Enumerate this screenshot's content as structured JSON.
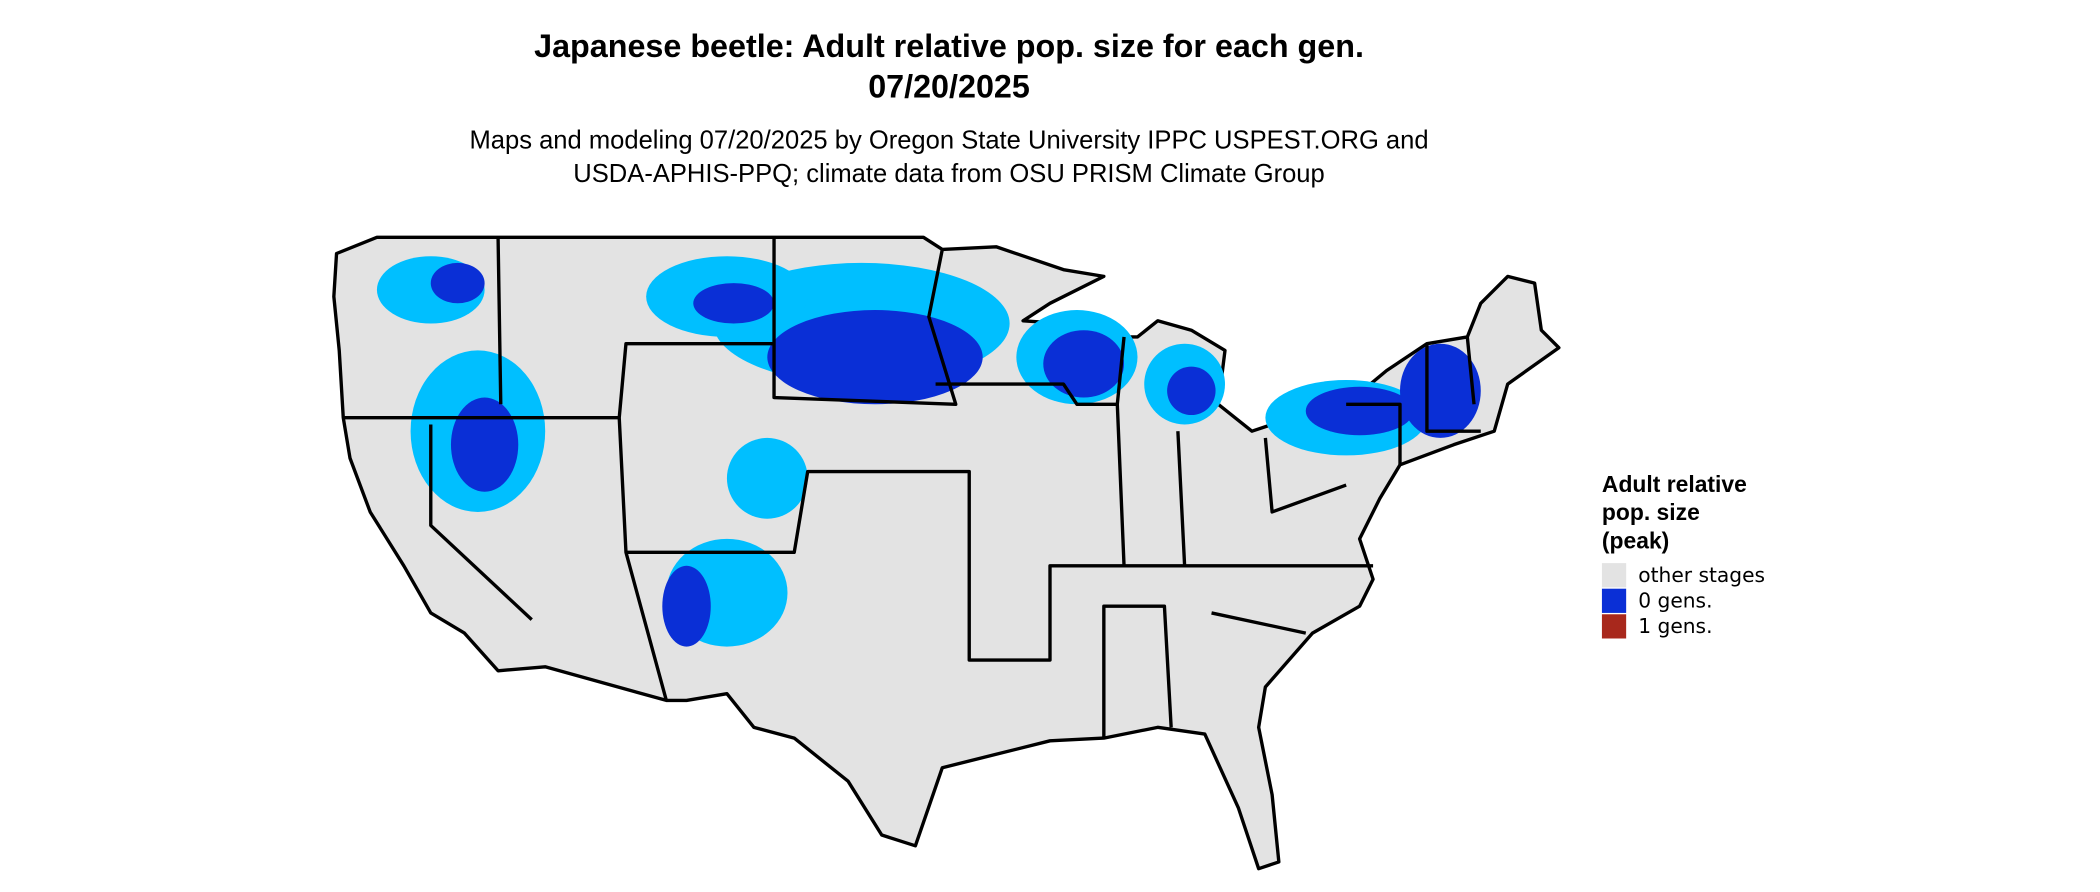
{
  "title": "Japanese beetle: Adult relative pop. size for each gen.",
  "date": "07/20/2025",
  "subtitle": [
    "Maps and modeling 07/20/2025 by Oregon State University IPPC USPEST.ORG and",
    "USDA-APHIS-PPQ; climate data from OSU PRISM Climate Group"
  ],
  "legend": {
    "title": [
      "Adult relative",
      "pop. size",
      "(peak)"
    ],
    "items": [
      {
        "label": "other stages",
        "color": "#e3e3e3"
      },
      {
        "label": "0 gens.",
        "color": "#0a2fd6"
      },
      {
        "label": "1 gens.",
        "color": "#a8281c"
      }
    ]
  }
}
